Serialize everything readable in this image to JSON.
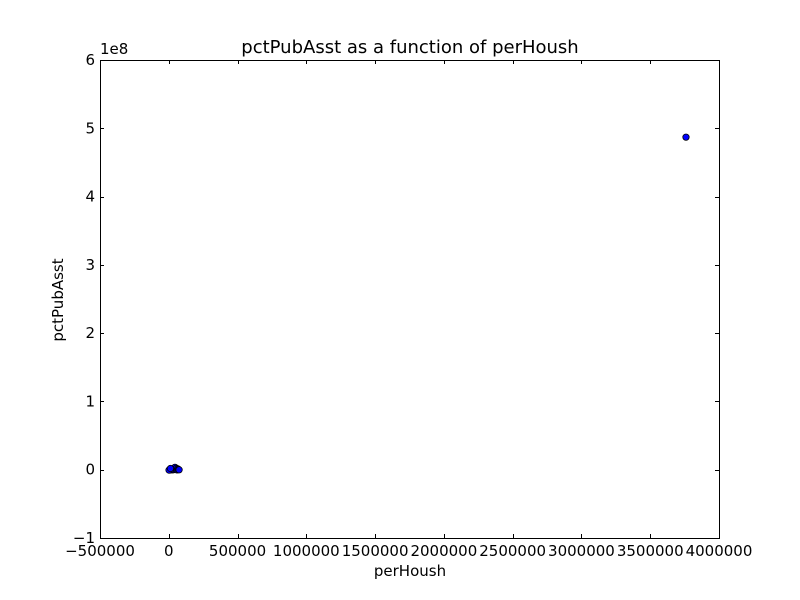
{
  "chart_data": {
    "type": "scatter",
    "title": "pctPubAsst as a function of perHoush",
    "xlabel": "perHoush",
    "ylabel": "pctPubAsst",
    "xlim": [
      -500000,
      4000000
    ],
    "ylim": [
      -100000000,
      600000000
    ],
    "x_ticks": [
      -500000,
      0,
      500000,
      1000000,
      1500000,
      2000000,
      2500000,
      3000000,
      3500000,
      4000000
    ],
    "x_tick_labels": [
      "−500000",
      "0",
      "500000",
      "1000000",
      "1500000",
      "2000000",
      "2500000",
      "3000000",
      "3500000",
      "4000000"
    ],
    "y_ticks": [
      -100000000,
      0,
      100000000,
      200000000,
      300000000,
      400000000,
      500000000,
      600000000
    ],
    "y_tick_labels": [
      "−1",
      "0",
      "1",
      "2",
      "3",
      "4",
      "5",
      "6"
    ],
    "y_offset_label": "1e8",
    "point_color": "#0000ff",
    "points": [
      {
        "x": 3760000,
        "y": 487000000
      },
      {
        "x": 5000,
        "y": 100000
      },
      {
        "x": 10000,
        "y": -400000
      },
      {
        "x": 15000,
        "y": 500000
      },
      {
        "x": 20000,
        "y": 0
      },
      {
        "x": 25000,
        "y": 900000
      },
      {
        "x": 30000,
        "y": -200000
      },
      {
        "x": 35000,
        "y": 1500000
      },
      {
        "x": 40000,
        "y": 300000
      },
      {
        "x": 45000,
        "y": 3500000
      },
      {
        "x": 50000,
        "y": 1000000
      },
      {
        "x": 55000,
        "y": 2000000
      },
      {
        "x": 60000,
        "y": -300000
      },
      {
        "x": 65000,
        "y": 1200000
      },
      {
        "x": 70000,
        "y": 200000
      },
      {
        "x": 75000,
        "y": -100000
      },
      {
        "x": 2000,
        "y": -600000
      },
      {
        "x": 12000,
        "y": 1800000
      }
    ]
  }
}
